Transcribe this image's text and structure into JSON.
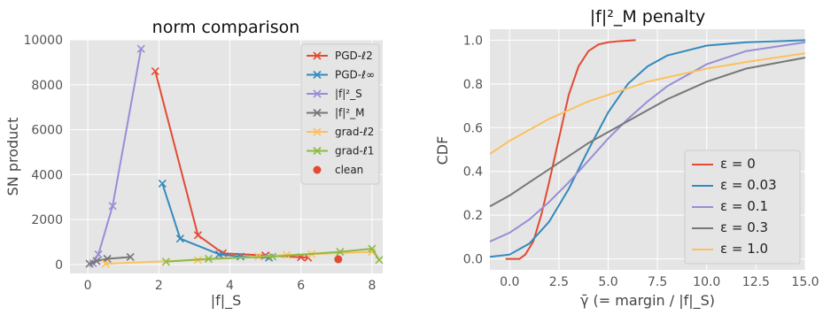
{
  "chart_data": [
    {
      "type": "line",
      "title": "norm comparison",
      "xlabel": "|f|_S",
      "ylabel": "SN product",
      "xlim": [
        -0.5,
        8.3
      ],
      "ylim": [
        -400,
        10000
      ],
      "xticks": [
        0,
        2,
        4,
        6,
        8
      ],
      "yticks": [
        0,
        2000,
        4000,
        6000,
        8000,
        10000
      ],
      "legend_position": "top-right",
      "series": [
        {
          "name": "PGD-ℓ2",
          "color": "#E24A33",
          "marker": "x",
          "points": [
            [
              1.9,
              8600
            ],
            [
              3.1,
              1300
            ],
            [
              3.8,
              500
            ],
            [
              5.0,
              400
            ],
            [
              6.0,
              320
            ],
            [
              6.2,
              300
            ]
          ]
        },
        {
          "name": "PGD-ℓ∞",
          "color": "#348ABD",
          "marker": "x",
          "points": [
            [
              2.1,
              3600
            ],
            [
              2.6,
              1150
            ],
            [
              3.7,
              450
            ],
            [
              4.3,
              350
            ],
            [
              5.1,
              300
            ]
          ]
        },
        {
          "name": "|f|²_S",
          "color": "#988ED5",
          "marker": "x",
          "points": [
            [
              0.15,
              50
            ],
            [
              0.3,
              450
            ],
            [
              0.7,
              2600
            ],
            [
              1.5,
              9600
            ]
          ]
        },
        {
          "name": "|f|²_M",
          "color": "#777777",
          "marker": "x",
          "points": [
            [
              0.05,
              30
            ],
            [
              0.25,
              150
            ],
            [
              0.55,
              250
            ],
            [
              1.2,
              330
            ]
          ]
        },
        {
          "name": "grad-ℓ2",
          "color": "#FBC15E",
          "marker": "x",
          "points": [
            [
              0.5,
              30
            ],
            [
              3.1,
              200
            ],
            [
              4.8,
              350
            ],
            [
              5.6,
              420
            ],
            [
              6.3,
              460
            ],
            [
              8.0,
              560
            ]
          ]
        },
        {
          "name": "grad-ℓ1",
          "color": "#8EBA42",
          "marker": "x",
          "points": [
            [
              2.2,
              120
            ],
            [
              3.4,
              250
            ],
            [
              5.2,
              350
            ],
            [
              7.1,
              560
            ],
            [
              8.0,
              700
            ],
            [
              8.2,
              200
            ]
          ]
        },
        {
          "name": "clean",
          "color": "#E24A33",
          "marker": "o",
          "points": [
            [
              7.05,
              230
            ]
          ]
        }
      ]
    },
    {
      "type": "line",
      "title": "|f|²_M penalty",
      "xlabel": "γ̄ (= margin / |f|_S)",
      "ylabel": "CDF",
      "xlim": [
        -1.0,
        15.0
      ],
      "ylim": [
        -0.05,
        1.05
      ],
      "xticks": [
        0.0,
        2.5,
        5.0,
        7.5,
        10.0,
        12.5,
        15.0
      ],
      "yticks": [
        0.0,
        0.2,
        0.4,
        0.6,
        0.8,
        1.0
      ],
      "legend_position": "lower-right",
      "series": [
        {
          "name": "ε = 0",
          "color": "#E24A33",
          "points": [
            [
              -0.2,
              0.0
            ],
            [
              0.5,
              0.0
            ],
            [
              0.8,
              0.02
            ],
            [
              1.2,
              0.08
            ],
            [
              1.6,
              0.2
            ],
            [
              2.0,
              0.35
            ],
            [
              2.5,
              0.55
            ],
            [
              3.0,
              0.75
            ],
            [
              3.5,
              0.88
            ],
            [
              4.0,
              0.95
            ],
            [
              4.5,
              0.98
            ],
            [
              5.0,
              0.99
            ],
            [
              5.5,
              0.995
            ],
            [
              6.4,
              1.0
            ]
          ]
        },
        {
          "name": "ε = 0.03",
          "color": "#348ABD",
          "points": [
            [
              -1.0,
              0.01
            ],
            [
              0.0,
              0.02
            ],
            [
              1.0,
              0.07
            ],
            [
              2.0,
              0.17
            ],
            [
              3.0,
              0.32
            ],
            [
              4.0,
              0.5
            ],
            [
              5.0,
              0.67
            ],
            [
              6.0,
              0.8
            ],
            [
              7.0,
              0.88
            ],
            [
              8.0,
              0.93
            ],
            [
              10.0,
              0.975
            ],
            [
              12.0,
              0.99
            ],
            [
              15.0,
              1.0
            ]
          ]
        },
        {
          "name": "ε = 0.1",
          "color": "#988ED5",
          "points": [
            [
              -1.0,
              0.08
            ],
            [
              0.0,
              0.12
            ],
            [
              1.0,
              0.18
            ],
            [
              2.0,
              0.26
            ],
            [
              3.0,
              0.35
            ],
            [
              4.0,
              0.45
            ],
            [
              5.0,
              0.55
            ],
            [
              6.0,
              0.64
            ],
            [
              7.0,
              0.72
            ],
            [
              8.0,
              0.79
            ],
            [
              10.0,
              0.89
            ],
            [
              12.0,
              0.95
            ],
            [
              15.0,
              0.99
            ]
          ]
        },
        {
          "name": "ε = 0.3",
          "color": "#777777",
          "points": [
            [
              -1.0,
              0.24
            ],
            [
              0.0,
              0.29
            ],
            [
              1.0,
              0.35
            ],
            [
              2.0,
              0.41
            ],
            [
              3.0,
              0.47
            ],
            [
              4.0,
              0.53
            ],
            [
              5.0,
              0.58
            ],
            [
              6.0,
              0.63
            ],
            [
              7.0,
              0.68
            ],
            [
              8.0,
              0.73
            ],
            [
              10.0,
              0.81
            ],
            [
              12.0,
              0.87
            ],
            [
              15.0,
              0.92
            ]
          ]
        },
        {
          "name": "ε = 1.0",
          "color": "#FBC15E",
          "points": [
            [
              -1.0,
              0.48
            ],
            [
              0.0,
              0.54
            ],
            [
              1.0,
              0.59
            ],
            [
              2.0,
              0.64
            ],
            [
              3.0,
              0.68
            ],
            [
              4.0,
              0.72
            ],
            [
              5.0,
              0.75
            ],
            [
              6.0,
              0.78
            ],
            [
              7.0,
              0.81
            ],
            [
              8.0,
              0.83
            ],
            [
              10.0,
              0.87
            ],
            [
              12.0,
              0.9
            ],
            [
              15.0,
              0.94
            ]
          ]
        }
      ]
    }
  ]
}
